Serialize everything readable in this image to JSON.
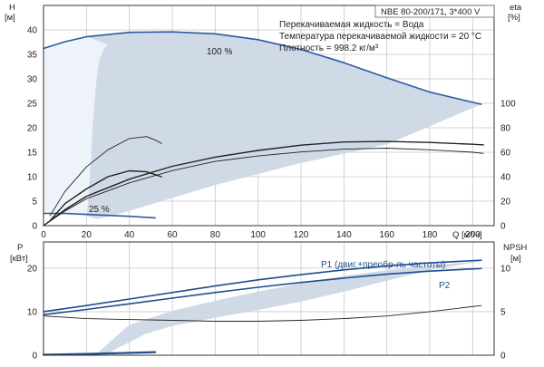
{
  "chart_data": [
    {
      "type": "line",
      "name": "head-efficiency",
      "title": "NBE 80-200/171, 3*400 V",
      "info_lines": [
        "Перекачиваемая жидкость = Вода",
        "Температура перекачиваемой жидкости = 20 °C",
        "Плотность = 998.2 кг/м³"
      ],
      "xlabel": "Q [м³/ч]",
      "xlim": [
        0,
        210
      ],
      "xticks": [
        0,
        20,
        40,
        60,
        80,
        100,
        120,
        140,
        160,
        180,
        200
      ],
      "ylabel_left": [
        "H",
        "[м]"
      ],
      "ylim_left": [
        0,
        45
      ],
      "yticks_left": [
        0,
        5,
        10,
        15,
        20,
        25,
        30,
        35,
        40
      ],
      "ylabel_right": [
        "eta",
        "[%]"
      ],
      "ylim_right": [
        0,
        180
      ],
      "yticks_right": [
        0,
        20,
        40,
        60,
        80,
        100
      ],
      "grid": true,
      "annotations": [
        "100 %",
        "25 %"
      ],
      "envelope_polygon": [
        [
          0,
          36.2
        ],
        [
          10,
          37.6
        ],
        [
          20,
          38.6
        ],
        [
          40,
          39.5
        ],
        [
          60,
          39.6
        ],
        [
          80,
          39.2
        ],
        [
          100,
          38.0
        ],
        [
          120,
          36.0
        ],
        [
          140,
          33.3
        ],
        [
          160,
          30.2
        ],
        [
          180,
          27.3
        ],
        [
          204,
          24.8
        ],
        [
          160,
          16.6
        ],
        [
          120,
          12.8
        ],
        [
          80,
          8.3
        ],
        [
          55,
          5.0
        ],
        [
          40,
          3.0
        ],
        [
          30,
          1.8
        ],
        [
          25,
          1.4
        ],
        [
          20,
          1.9
        ],
        [
          21,
          6
        ],
        [
          22,
          13
        ],
        [
          23,
          21
        ],
        [
          24.5,
          29
        ],
        [
          26,
          34
        ],
        [
          28,
          36
        ],
        [
          30,
          37
        ],
        [
          20,
          38.6
        ],
        [
          10,
          37.6
        ],
        [
          0,
          36.2
        ]
      ],
      "series": [
        {
          "name": "100 %",
          "axis": "left",
          "color": "#2a5aa0",
          "points": [
            [
              0,
              36.2
            ],
            [
              10,
              37.6
            ],
            [
              20,
              38.6
            ],
            [
              40,
              39.5
            ],
            [
              60,
              39.6
            ],
            [
              80,
              39.2
            ],
            [
              100,
              38.0
            ],
            [
              120,
              36.0
            ],
            [
              140,
              33.3
            ],
            [
              160,
              30.2
            ],
            [
              180,
              27.3
            ],
            [
              204,
              24.8
            ]
          ]
        },
        {
          "name": "25 %",
          "axis": "left",
          "color": "#2a5aa0",
          "points": [
            [
              0,
              2.5
            ],
            [
              10,
              2.5
            ],
            [
              20,
              2.3
            ],
            [
              30,
              2.1
            ],
            [
              40,
              1.9
            ],
            [
              52,
              1.6
            ]
          ]
        },
        {
          "axis": "left",
          "color": "#222222",
          "points": [
            [
              3,
              2
            ],
            [
              10,
              7
            ],
            [
              20,
              12
            ],
            [
              30,
              15.5
            ],
            [
              40,
              17.8
            ],
            [
              48,
              18.2
            ],
            [
              53,
              17.3
            ],
            [
              55,
              16.8
            ]
          ]
        },
        {
          "axis": "left",
          "color": "#222222",
          "points": [
            [
              3,
              1
            ],
            [
              10,
              4.5
            ],
            [
              20,
              7.5
            ],
            [
              30,
              10
            ],
            [
              40,
              11.2
            ],
            [
              48,
              11
            ],
            [
              53,
              10.3
            ],
            [
              55,
              10
            ]
          ]
        },
        {
          "axis": "right",
          "color": "#222222",
          "points": [
            [
              0,
              0
            ],
            [
              10,
              12
            ],
            [
              20,
              22
            ],
            [
              40,
              35
            ],
            [
              60,
              45
            ],
            [
              80,
              52.5
            ],
            [
              100,
              57
            ],
            [
              120,
              60.2
            ],
            [
              140,
              62.5
            ],
            [
              160,
              63.3
            ],
            [
              180,
              62
            ],
            [
              200,
              60
            ],
            [
              205,
              59
            ]
          ]
        },
        {
          "axis": "right",
          "color": "#222222",
          "points": [
            [
              0,
              0
            ],
            [
              10,
              13
            ],
            [
              20,
              24
            ],
            [
              40,
              38
            ],
            [
              60,
              48.5
            ],
            [
              80,
              56
            ],
            [
              100,
              61.5
            ],
            [
              120,
              65.8
            ],
            [
              140,
              68.4
            ],
            [
              160,
              68.8
            ],
            [
              180,
              68
            ],
            [
              200,
              66.5
            ],
            [
              205,
              66
            ]
          ]
        }
      ]
    },
    {
      "type": "line",
      "name": "power-npsh",
      "xlim": [
        0,
        210
      ],
      "ylabel_left": [
        "P",
        "[кВт]"
      ],
      "ylim_left": [
        0,
        26
      ],
      "yticks_left": [
        0,
        10,
        20
      ],
      "ylabel_right": [
        "NPSH",
        "[м]"
      ],
      "ylim_right": [
        0,
        13
      ],
      "yticks_right": [
        0,
        5,
        10
      ],
      "grid": true,
      "envelope_polygon": [
        [
          24,
          0
        ],
        [
          40,
          7
        ],
        [
          60,
          10.2
        ],
        [
          80,
          12.5
        ],
        [
          100,
          14.6
        ],
        [
          120,
          16.5
        ],
        [
          140,
          18.2
        ],
        [
          160,
          19.5
        ],
        [
          180,
          20.6
        ],
        [
          204,
          21.6
        ],
        [
          180,
          19.5
        ],
        [
          160,
          17.1
        ],
        [
          140,
          14.6
        ],
        [
          120,
          12.3
        ],
        [
          100,
          10.4
        ],
        [
          80,
          8.6
        ],
        [
          60,
          6.7
        ],
        [
          48,
          5
        ],
        [
          40,
          3
        ],
        [
          30,
          0.5
        ],
        [
          24,
          0
        ]
      ],
      "series": [
        {
          "name": "P1 (двиг.+преобр-ль частоты)",
          "axis": "left",
          "color": "#1f4e8c",
          "points": [
            [
              0,
              10
            ],
            [
              20,
              11.4
            ],
            [
              40,
              12.9
            ],
            [
              60,
              14.4
            ],
            [
              80,
              15.9
            ],
            [
              100,
              17.3
            ],
            [
              120,
              18.5
            ],
            [
              140,
              19.6
            ],
            [
              160,
              20.5
            ],
            [
              180,
              21.2
            ],
            [
              204,
              21.8
            ]
          ]
        },
        {
          "name": "P2",
          "axis": "left",
          "color": "#1f4e8c",
          "points": [
            [
              0,
              9.3
            ],
            [
              20,
              10.5
            ],
            [
              40,
              11.8
            ],
            [
              60,
              13.1
            ],
            [
              80,
              14.4
            ],
            [
              100,
              15.6
            ],
            [
              120,
              16.7
            ],
            [
              140,
              17.7
            ],
            [
              160,
              18.6
            ],
            [
              180,
              19.3
            ],
            [
              204,
              19.9
            ]
          ]
        },
        {
          "axis": "right",
          "color": "#222222",
          "points": [
            [
              0,
              4.5
            ],
            [
              20,
              4.2
            ],
            [
              40,
              4.1
            ],
            [
              60,
              4.0
            ],
            [
              80,
              3.9
            ],
            [
              100,
              3.9
            ],
            [
              120,
              4.0
            ],
            [
              140,
              4.2
            ],
            [
              160,
              4.5
            ],
            [
              180,
              5.0
            ],
            [
              204,
              5.7
            ]
          ]
        },
        {
          "axis": "left",
          "color": "#1f4e8c",
          "points": [
            [
              0,
              0.1
            ],
            [
              20,
              0.3
            ],
            [
              40,
              0.55
            ],
            [
              52,
              0.7
            ]
          ]
        }
      ]
    }
  ],
  "colors": {
    "envelope_fill": "#cdd8e6",
    "envelope_left_fill": "#eef3fa",
    "curve_blue": "#2a5aa0",
    "curve_black": "#222222"
  }
}
